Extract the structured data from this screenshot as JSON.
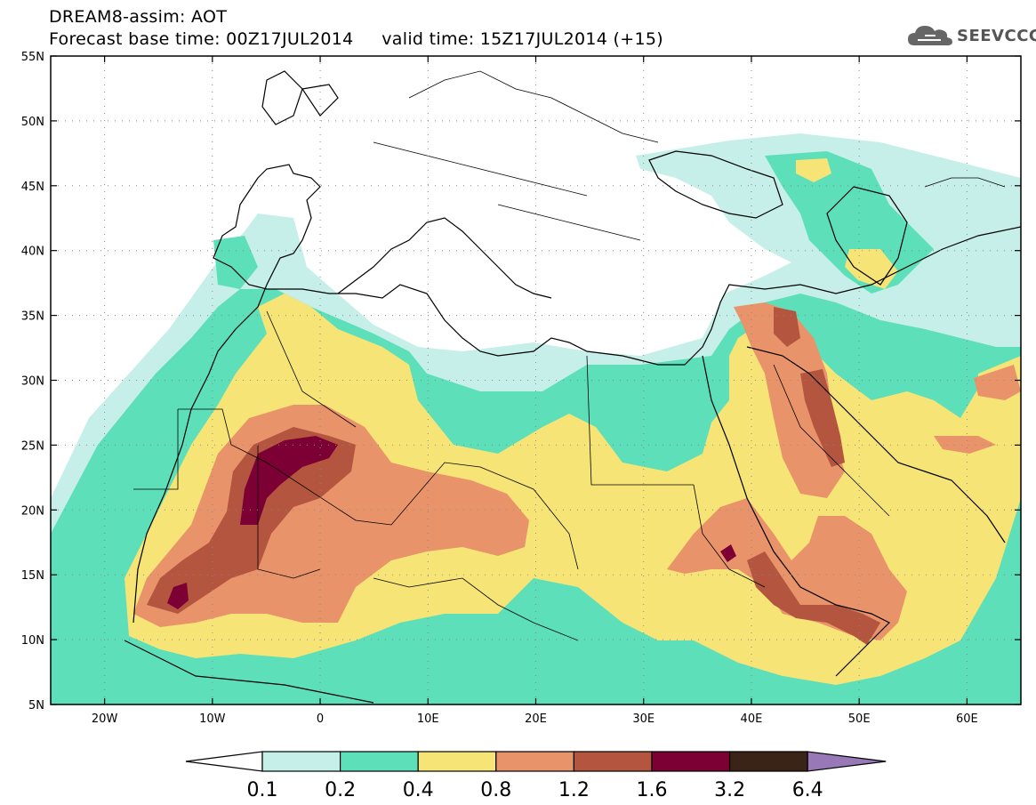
{
  "header": {
    "title_line1": "DREAM8-assim: AOT",
    "base_label": "Forecast base time: 00Z17JUL2014",
    "valid_label": "valid time: 15Z17JUL2014 (+15)"
  },
  "logo": {
    "text": "SEEVCCC",
    "icon": "cloud-icon"
  },
  "map": {
    "lon_range": [
      -25,
      65
    ],
    "lat_range": [
      5,
      55
    ],
    "lon_ticks": [
      "20W",
      "10W",
      "0",
      "10E",
      "20E",
      "30E",
      "40E",
      "50E",
      "60E"
    ],
    "lat_ticks": [
      "55N",
      "50N",
      "45N",
      "40N",
      "35N",
      "30N",
      "25N",
      "20N",
      "15N",
      "10N",
      "5N"
    ],
    "grid": "dotted"
  },
  "colorbar": {
    "colors": [
      "#ffffff",
      "#c5efe8",
      "#5ddfb9",
      "#f6e476",
      "#e9936a",
      "#b3553f",
      "#7d0034",
      "#3a2418",
      "#9878b7"
    ],
    "labels": [
      "0.1",
      "0.2",
      "0.4",
      "0.8",
      "1.2",
      "1.6",
      "3.2",
      "6.4"
    ]
  }
}
